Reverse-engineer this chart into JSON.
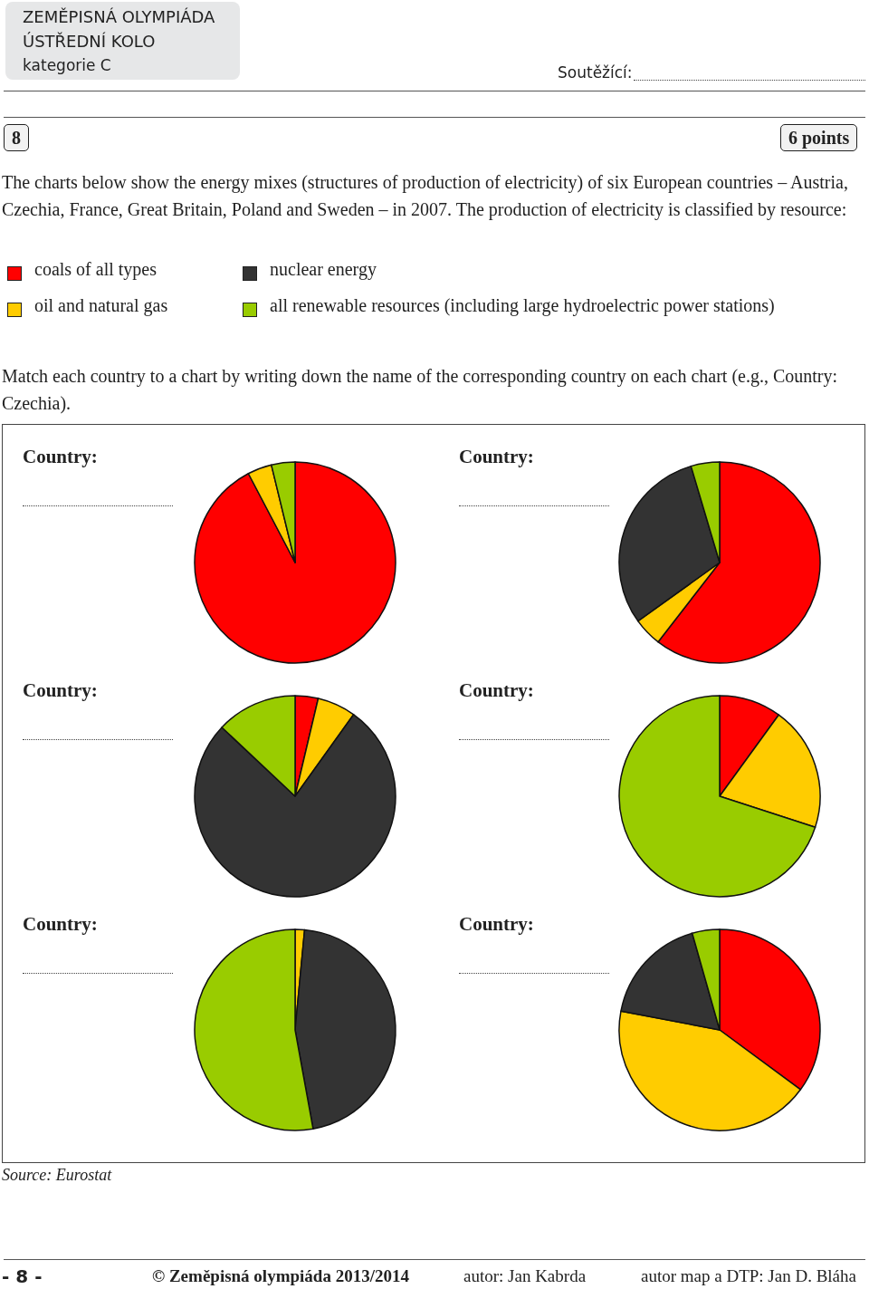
{
  "chart_data": [
    {
      "type": "pie",
      "title": "Country:",
      "categories": [
        "coals of all types",
        "oil and natural gas",
        "nuclear energy",
        "all renewable resources (including large hydroelectric power stations)"
      ],
      "values": [
        92.3,
        3.9,
        0,
        3.8
      ],
      "colors": [
        "#ff0000",
        "#ffcc00",
        "#333333",
        "#99cc00"
      ],
      "legend": "top",
      "annotations": [
        "ZEMĚPISNÁ OLYMPIÁDA",
        "ÚSTŘEDNÍ KOLO",
        "kategorie C",
        "Soutěžící:",
        "8",
        "6 points",
        "The charts below show the energy mixes (structures of production of electricity) of six European countries – Austria, Czechia, France, Great Britain, Poland and Sweden – in 2007. The production of electricity is classified by resource:",
        "Match each country to a chart by writing down the name of the corresponding country on each chart (e.g., Country: Czechia).",
        "Source: Eurostat",
        "- 8 -",
        "© Zeměpisná olympiáda 2013/2014",
        "autor: Jan Kabrda",
        "autor map a DTP: Jan D. Bláha"
      ]
    },
    {
      "type": "pie",
      "title": "Country:",
      "categories": [
        null,
        null,
        null,
        null
      ],
      "values": [
        60.5,
        4.6,
        30.3,
        4.6
      ],
      "colors": [
        "#ff0000",
        "#ffcc00",
        "#333333",
        "#99cc00"
      ]
    },
    {
      "type": "pie",
      "title": "Country:",
      "categories": [
        null,
        null,
        null,
        null
      ],
      "values": [
        3.7,
        6.2,
        77.1,
        13.0
      ],
      "colors": [
        "#ff0000",
        "#ffcc00",
        "#333333",
        "#99cc00"
      ]
    },
    {
      "type": "pie",
      "title": "Country:",
      "categories": [
        null,
        null,
        null,
        null
      ],
      "values": [
        10.0,
        20.0,
        0,
        70.0
      ],
      "colors": [
        "#ff0000",
        "#ffcc00",
        "#333333",
        "#99cc00"
      ]
    },
    {
      "type": "pie",
      "title": "Country:",
      "categories": [
        null,
        null,
        null,
        null
      ],
      "values": [
        null,
        1.5,
        45.4,
        52.6
      ],
      "colors": [
        "#ff0000",
        "#ffcc00",
        "#333333",
        "#99cc00"
      ]
    },
    {
      "type": "pie",
      "title": "Country:",
      "categories": [
        null,
        null,
        null,
        null
      ],
      "values": [
        35.1,
        42.9,
        17.6,
        4.4
      ],
      "colors": [
        "#ff0000",
        "#ffcc00",
        "#333333",
        "#99cc00"
      ]
    }
  ]
}
